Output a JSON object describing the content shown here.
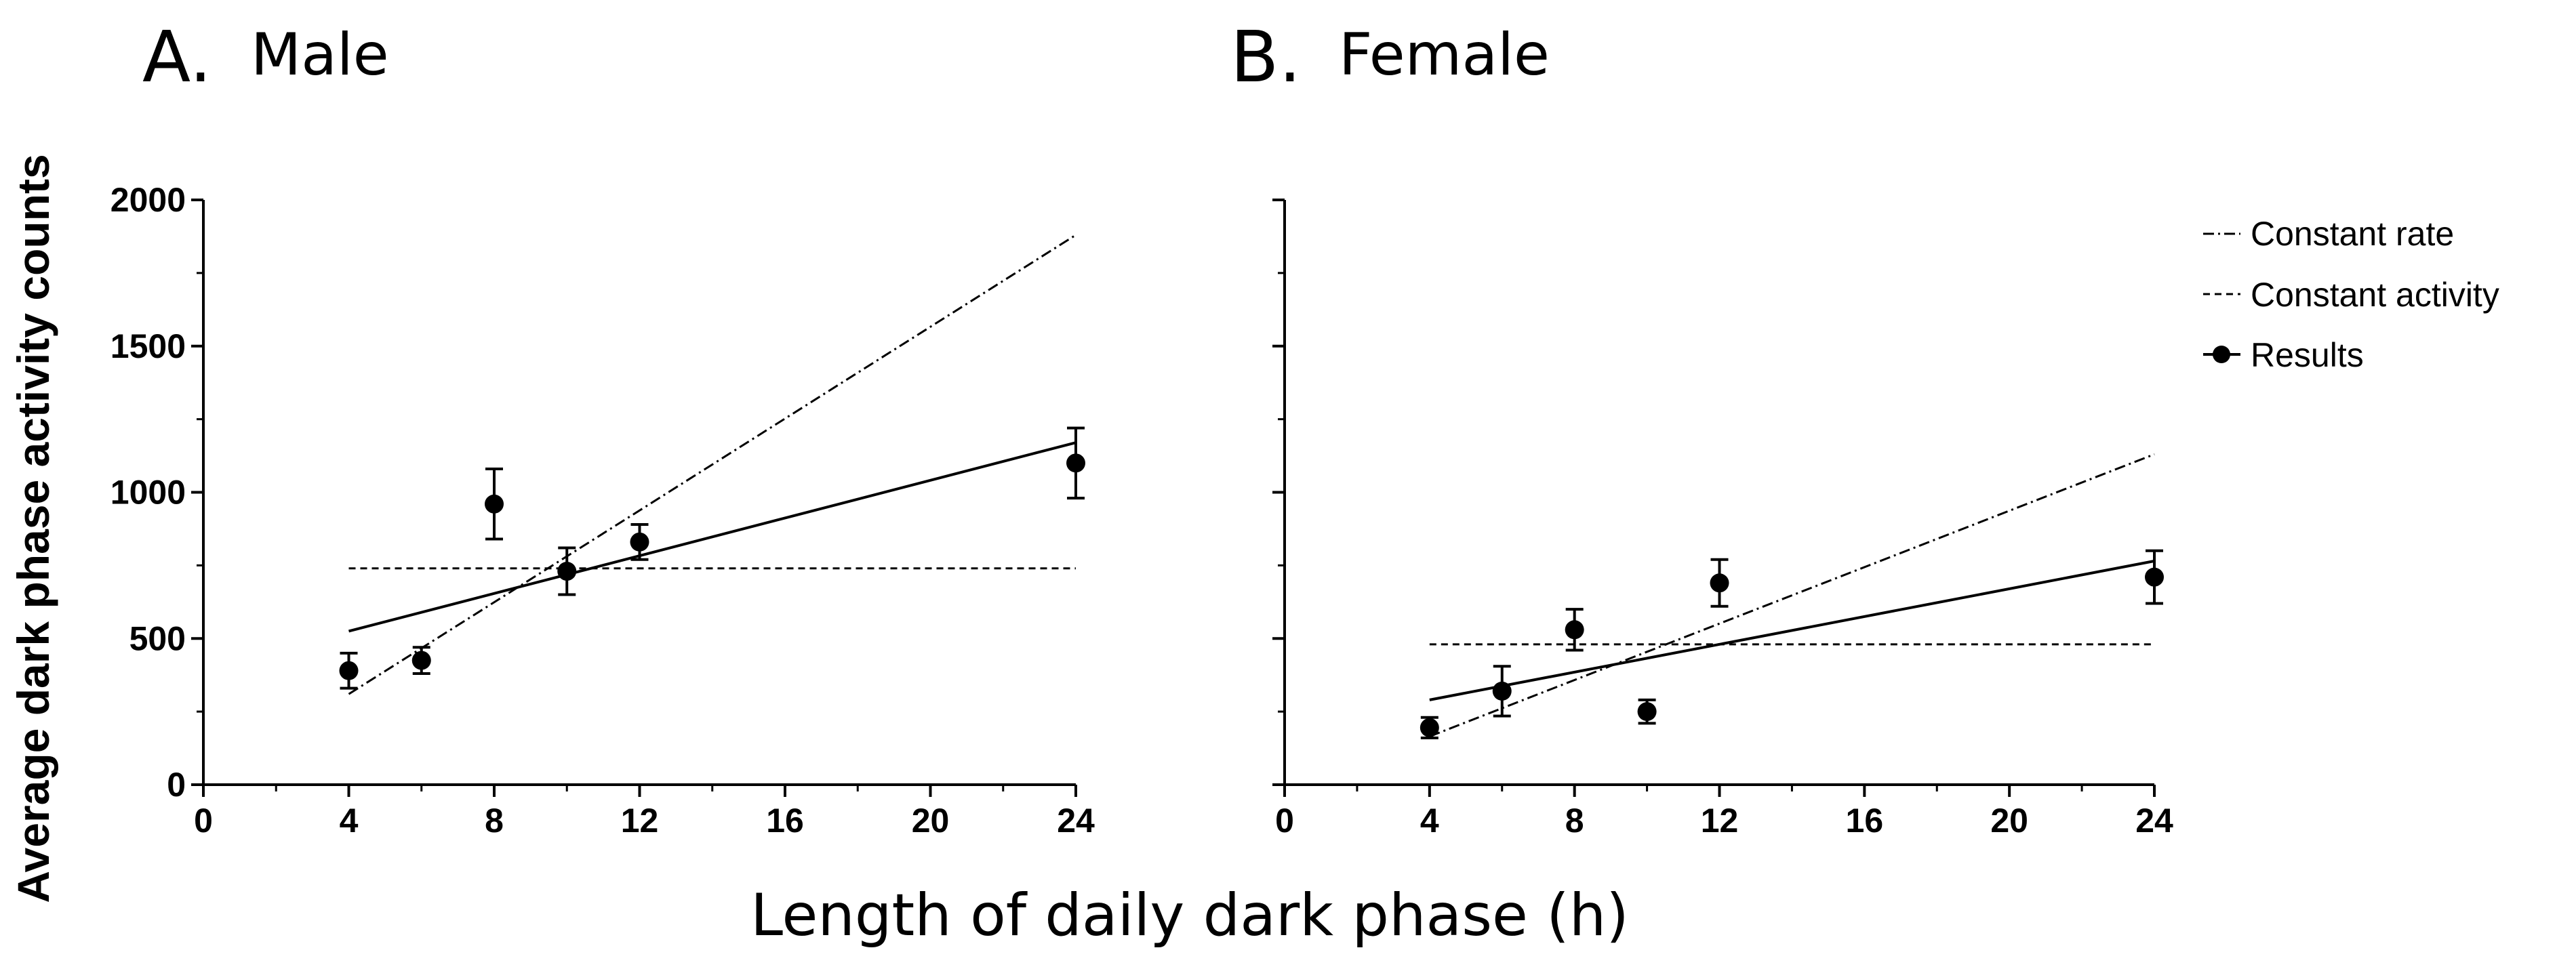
{
  "figure": {
    "ylabel": "Average dark phase activity counts",
    "xlabel": "Length of daily dark phase (h)",
    "legend": [
      {
        "key": "constant_rate",
        "label": "Constant rate",
        "style": "dash-dot"
      },
      {
        "key": "constant_activity",
        "label": "Constant activity",
        "style": "dashed"
      },
      {
        "key": "results",
        "label": "Results",
        "style": "solid-with-points"
      }
    ],
    "colors": {
      "ink": "#000000",
      "background": "#ffffff"
    }
  },
  "chart_data": [
    {
      "type": "scatter",
      "panel": "A.",
      "title": "Male",
      "xlabel": "Length of daily dark phase (h)",
      "ylabel": "Average dark phase activity counts",
      "xlim": [
        0,
        24
      ],
      "ylim": [
        0,
        2000
      ],
      "xticks": [
        0,
        4,
        8,
        12,
        16,
        20,
        24
      ],
      "xtick_labels": [
        "0",
        "4",
        "8",
        "12",
        "16",
        "20",
        "24"
      ],
      "yticks": [
        0,
        500,
        1000,
        1500,
        2000
      ],
      "ytick_labels": [
        "0",
        "500",
        "1000",
        "1500",
        "2000"
      ],
      "results": {
        "x": [
          4,
          6,
          8,
          10,
          12,
          24
        ],
        "y": [
          390,
          425,
          960,
          730,
          830,
          1100
        ],
        "err": [
          60,
          45,
          120,
          80,
          60,
          120
        ]
      },
      "fit_line": {
        "x": [
          4,
          24
        ],
        "y": [
          525,
          1170
        ]
      },
      "constant_rate": {
        "x": [
          4,
          24
        ],
        "y": [
          310,
          1880
        ]
      },
      "constant_activity": {
        "x": [
          4,
          24
        ],
        "y": [
          740,
          740
        ]
      }
    },
    {
      "type": "scatter",
      "panel": "B.",
      "title": "Female",
      "xlabel": "Length of daily dark phase (h)",
      "ylabel": "",
      "xlim": [
        0,
        24
      ],
      "ylim": [
        0,
        2000
      ],
      "xticks": [
        0,
        4,
        8,
        12,
        16,
        20,
        24
      ],
      "xtick_labels": [
        "0",
        "4",
        "8",
        "12",
        "16",
        "20",
        "24"
      ],
      "yticks": [
        0,
        500,
        1000,
        1500,
        2000
      ],
      "ytick_labels": [],
      "results": {
        "x": [
          4,
          6,
          8,
          10,
          12,
          24
        ],
        "y": [
          195,
          320,
          530,
          250,
          690,
          710
        ],
        "err": [
          35,
          85,
          70,
          40,
          80,
          90
        ]
      },
      "fit_line": {
        "x": [
          4,
          24
        ],
        "y": [
          290,
          765
        ]
      },
      "constant_rate": {
        "x": [
          4,
          24
        ],
        "y": [
          165,
          1130
        ]
      },
      "constant_activity": {
        "x": [
          4,
          24
        ],
        "y": [
          480,
          480
        ]
      }
    }
  ]
}
